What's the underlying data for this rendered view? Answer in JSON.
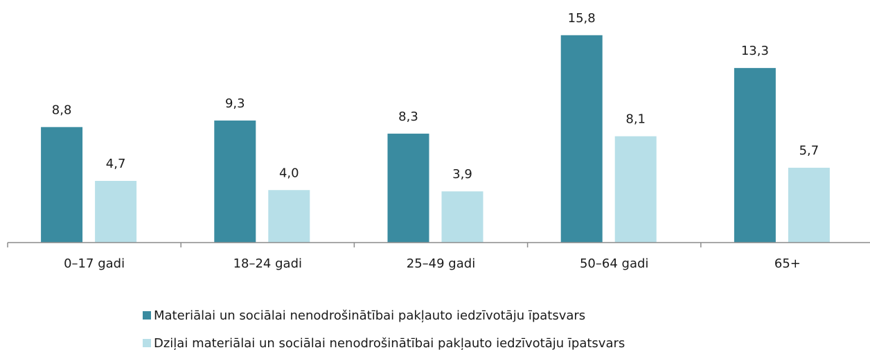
{
  "chart_data": {
    "type": "bar",
    "categories": [
      "0–17 gadi",
      "18–24 gadi",
      "25–49 gadi",
      "50–64 gadi",
      "65+"
    ],
    "series": [
      {
        "name": "Materiālai un sociālai nenodrošinātībai pakļauto iedzīvotāju īpatsvars",
        "color": "#3a8ba0",
        "values": [
          8.8,
          9.3,
          8.3,
          15.8,
          13.3
        ],
        "value_labels": [
          "8,8",
          "9,3",
          "8,3",
          "15,8",
          "13,3"
        ]
      },
      {
        "name": "Dziļai materiālai un sociālai nenodrošinātībai pakļauto iedzīvotāju īpatsvars",
        "color": "#b7dfe8",
        "values": [
          4.7,
          4.0,
          3.9,
          8.1,
          5.7
        ],
        "value_labels": [
          "4,7",
          "4,0",
          "3,9",
          "8,1",
          "5,7"
        ]
      }
    ],
    "ylim": [
      0,
      16
    ]
  }
}
